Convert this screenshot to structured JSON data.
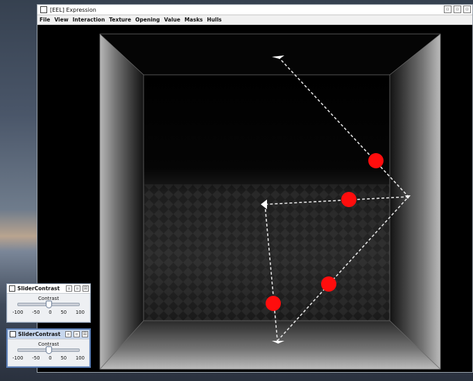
{
  "main_window": {
    "title": "[EEL] Expression",
    "buttons": [
      "▫",
      "▫",
      "▫"
    ],
    "menu": [
      "File",
      "View",
      "Interaction",
      "Texture",
      "Opening",
      "Value",
      "Masks",
      "Hulls"
    ]
  },
  "sliders": [
    {
      "title": "SliderContrast",
      "label": "Contrast",
      "value": 0,
      "min": -100,
      "max": 100,
      "ticks": [
        "-100",
        "-50",
        "0",
        "50",
        "100"
      ],
      "buttons": [
        "▫",
        "▫",
        "☒"
      ]
    },
    {
      "title": "SliderContrast",
      "label": "Contrast",
      "value": 0,
      "min": -100,
      "max": 100,
      "ticks": [
        "-100",
        "-50",
        "0",
        "50",
        "100"
      ],
      "buttons": [
        "▫",
        "▫",
        "☒"
      ]
    }
  ],
  "colors": {
    "marker": "#ff0d0d",
    "path": "#e6e6e6",
    "background": "#000000"
  },
  "viewport_items": {
    "red_markers": 4,
    "path_nodes": 4
  }
}
